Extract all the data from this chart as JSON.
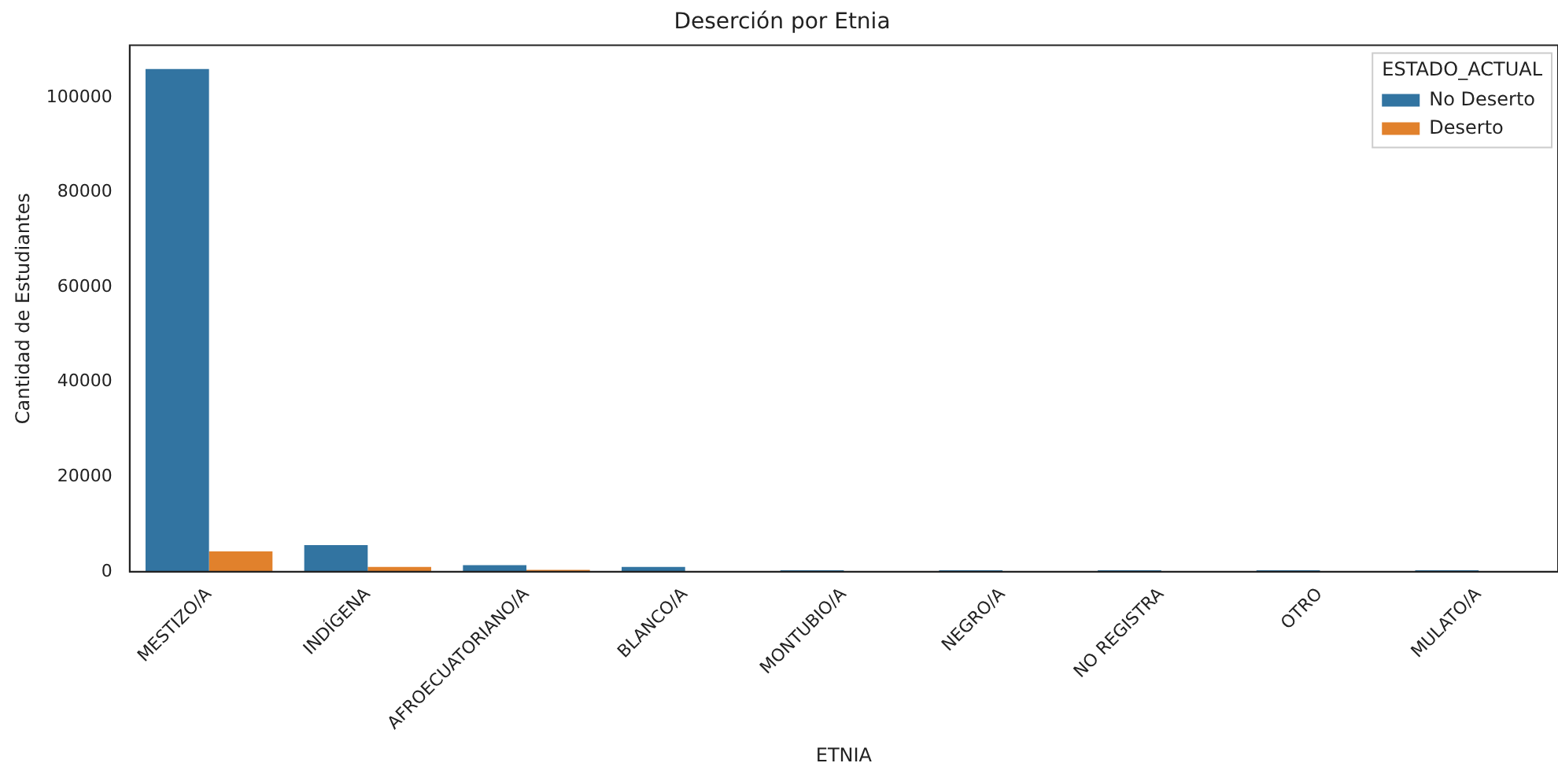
{
  "chart_data": {
    "type": "bar",
    "title": "Deserción por Etnia",
    "xlabel": "ETNIA",
    "ylabel": "Cantidad de Estudiantes",
    "legend_title": "ESTADO_ACTUAL",
    "categories": [
      "MESTIZO/A",
      "INDÍGENA",
      "AFROECUATORIANO/A",
      "BLANCO/A",
      "MONTUBIO/A",
      "NEGRO/A",
      "NO REGISTRA",
      "OTRO",
      "MULATO/A"
    ],
    "series": [
      {
        "name": "No Deserto",
        "color": "#3274a1",
        "values": [
          106000,
          5600,
          1400,
          1000,
          300,
          300,
          300,
          300,
          300
        ]
      },
      {
        "name": "Deserto",
        "color": "#e1812c",
        "values": [
          4300,
          1000,
          400,
          0,
          0,
          0,
          0,
          0,
          0
        ]
      }
    ],
    "ylim": [
      0,
      111000
    ],
    "yticks": [
      0,
      20000,
      40000,
      60000,
      80000,
      100000
    ],
    "grid": false,
    "legend": "top right"
  }
}
